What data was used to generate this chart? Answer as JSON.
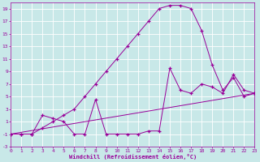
{
  "background_color": "#c8e8e8",
  "grid_color": "#ffffff",
  "line_color": "#990099",
  "marker": "+",
  "xlabel": "Windchill (Refroidissement éolien,°C)",
  "xlim": [
    0,
    23
  ],
  "ylim": [
    -3,
    20
  ],
  "xticks": [
    0,
    1,
    2,
    3,
    4,
    5,
    6,
    7,
    8,
    9,
    10,
    11,
    12,
    13,
    14,
    15,
    16,
    17,
    18,
    19,
    20,
    21,
    22,
    23
  ],
  "yticks": [
    -3,
    -1,
    1,
    3,
    5,
    7,
    9,
    11,
    13,
    15,
    17,
    19
  ],
  "series": [
    {
      "x": [
        0,
        1,
        2,
        3,
        4,
        5,
        6,
        7,
        8,
        9,
        10,
        11,
        12,
        13,
        14,
        15,
        16,
        17,
        18,
        19,
        20,
        21,
        22,
        23
      ],
      "y": [
        -1,
        -1,
        -1,
        0,
        1,
        2,
        3,
        5,
        7,
        9,
        11,
        13,
        15,
        17,
        19,
        19.5,
        19.5,
        19,
        15.5,
        10,
        6,
        8,
        5,
        5.5
      ]
    },
    {
      "x": [
        0,
        1,
        2,
        3,
        4,
        5,
        6,
        7,
        8,
        9,
        10,
        11,
        12,
        13,
        14,
        15,
        16,
        17,
        18,
        19,
        20,
        21,
        22,
        23
      ],
      "y": [
        -1,
        -1,
        -1,
        2,
        1.5,
        1,
        -1,
        -1,
        4.5,
        -1,
        -1,
        -1,
        -1,
        -0.5,
        -0.5,
        9.5,
        6,
        5.5,
        7,
        6.5,
        5.5,
        8.5,
        6,
        5.5
      ]
    },
    {
      "x": [
        0,
        23
      ],
      "y": [
        -1,
        5.5
      ]
    }
  ]
}
